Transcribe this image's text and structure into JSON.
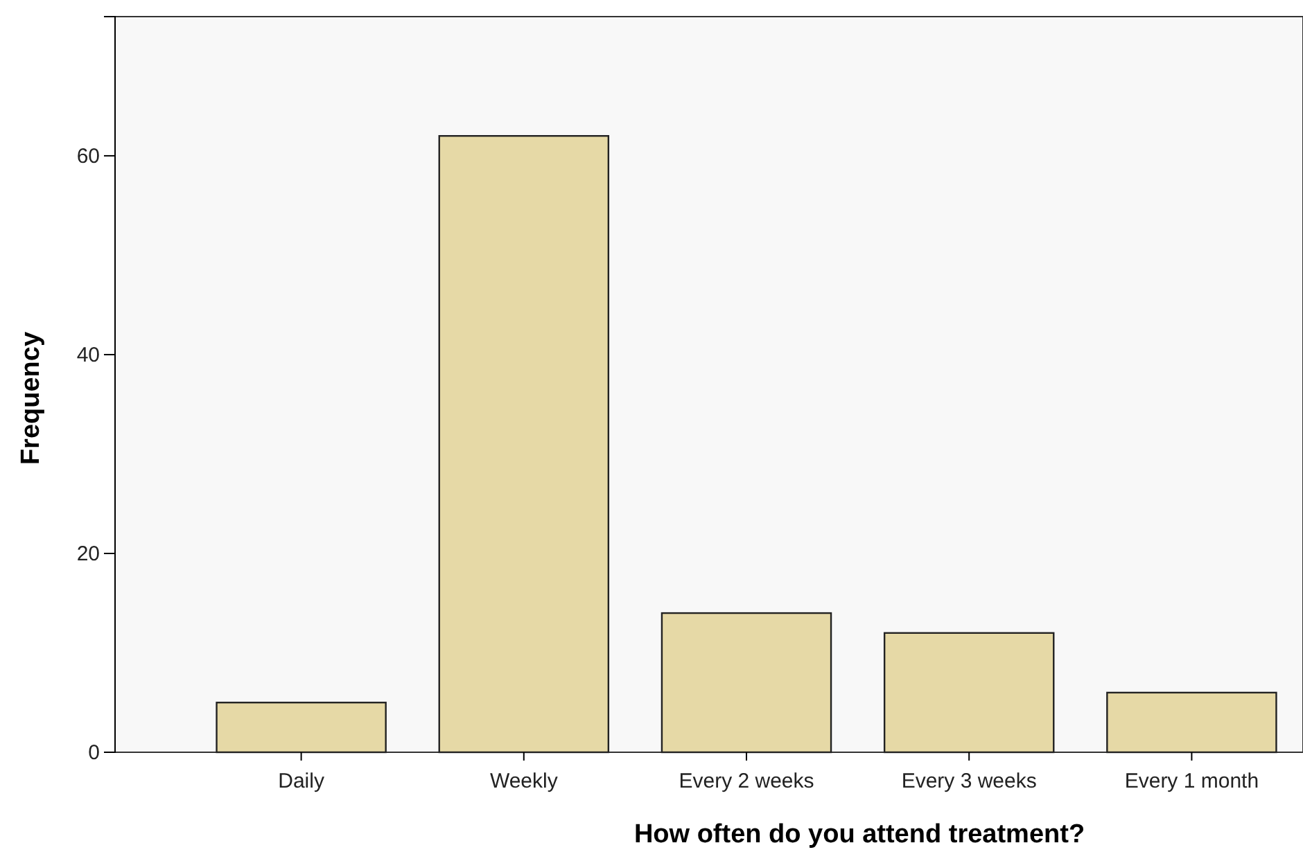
{
  "chart_data": {
    "type": "bar",
    "xlabel": "How often do you attend treatment?",
    "ylabel": "Frequency",
    "categories": [
      "Daily",
      "Weekly",
      "Every 2 weeks",
      "Every 3 weeks",
      "Every 1 month"
    ],
    "values": [
      5,
      62,
      14,
      12,
      6
    ],
    "color": "#e6d9a6",
    "ylim": [
      0,
      74
    ],
    "yticks": [
      0,
      20,
      40,
      60
    ],
    "grid": false
  }
}
